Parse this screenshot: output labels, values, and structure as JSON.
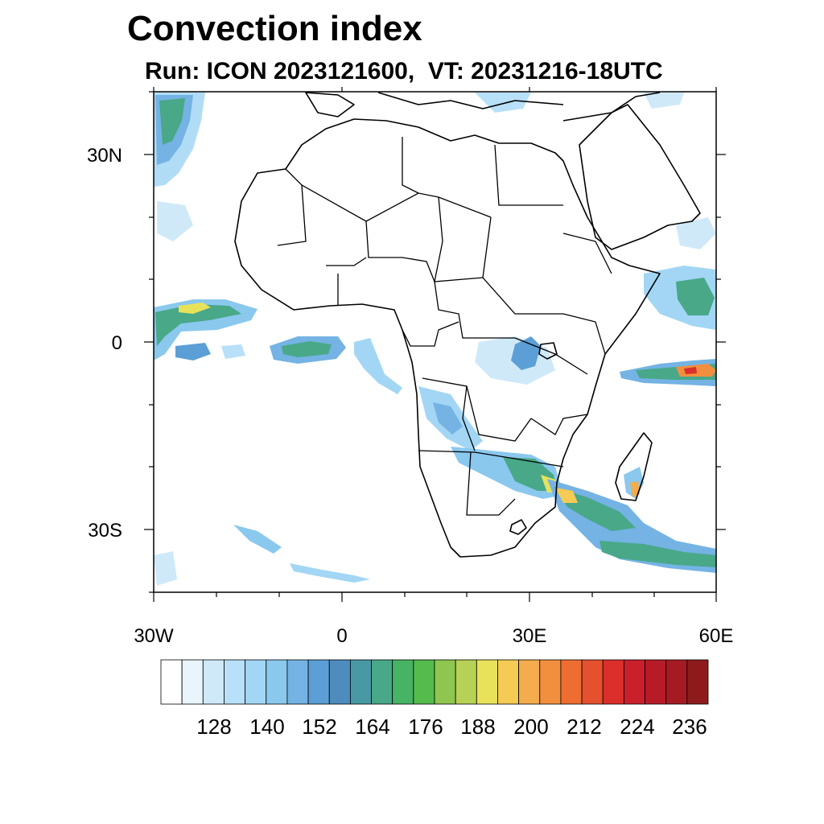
{
  "title": "Convection index",
  "subtitle": "Run: ICON 2023121600,  VT: 20231216-18UTC",
  "map": {
    "region": "Africa",
    "lon_range": [
      -30,
      60
    ],
    "lat_range": [
      -40,
      40
    ],
    "y_tick_labels": [
      {
        "lat": 30,
        "label": "30N"
      },
      {
        "lat": 0,
        "label": "0"
      },
      {
        "lat": -30,
        "label": "30S"
      }
    ],
    "x_tick_labels": [
      {
        "lon": -30,
        "label": "30W"
      },
      {
        "lon": 0,
        "label": "0"
      },
      {
        "lon": 30,
        "label": "30E"
      },
      {
        "lon": 60,
        "label": "60E"
      }
    ]
  },
  "colorbar": {
    "labels": [
      "128",
      "140",
      "152",
      "164",
      "176",
      "188",
      "200",
      "212",
      "224",
      "236"
    ],
    "colors": [
      "#ffffff",
      "#e8f5fd",
      "#cfe9f9",
      "#b8e0f8",
      "#a2d6f4",
      "#8ac8ee",
      "#74b3e4",
      "#5b9fd6",
      "#4e8cbd",
      "#4899a4",
      "#48a888",
      "#47b365",
      "#55bb4d",
      "#8ec650",
      "#b6d155",
      "#e8e25a",
      "#f6cb55",
      "#f4ac4e",
      "#f28f3f",
      "#ee6e32",
      "#e5502e",
      "#db2f2c",
      "#c9202b",
      "#b81b28",
      "#a51b23",
      "#8e1a1c"
    ]
  }
}
